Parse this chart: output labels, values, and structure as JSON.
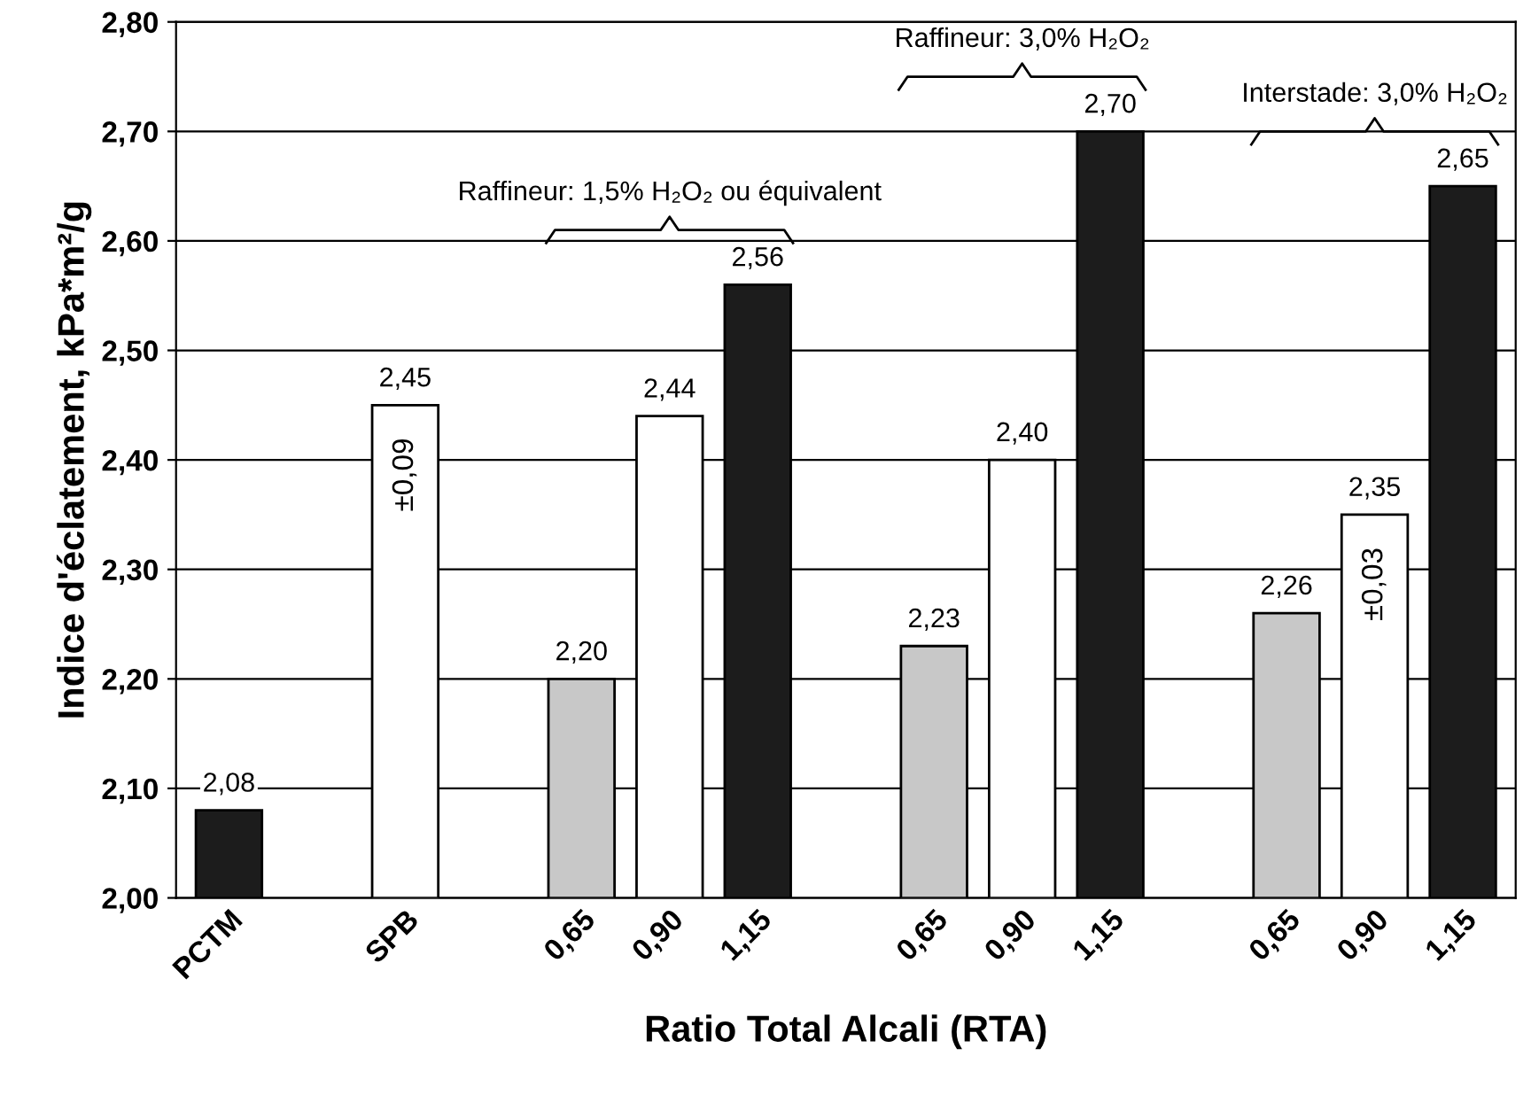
{
  "chart_data": {
    "type": "bar",
    "xlabel": "Ratio Total Alcali (RTA)",
    "ylabel": "Indice d'éclatement, kPa*m²/g",
    "categories": [
      "PCTM",
      null,
      "SPB",
      null,
      "0,65",
      "0,90",
      "1,15",
      null,
      "0,65",
      "0,90",
      "1,15",
      null,
      "0,65",
      "0,90",
      "1,15"
    ],
    "values": [
      2.08,
      null,
      2.45,
      null,
      2.2,
      2.44,
      2.56,
      null,
      2.23,
      2.4,
      2.7,
      null,
      2.26,
      2.35,
      2.65
    ],
    "value_labels": [
      "2,08",
      null,
      "2,45",
      null,
      "2,20",
      "2,44",
      "2,56",
      null,
      "2,23",
      "2,40",
      "2,70",
      null,
      "2,26",
      "2,35",
      "2,65"
    ],
    "colors": [
      "#1c1c1c",
      null,
      "#ffffff",
      null,
      "#c8c8c8",
      "#ffffff",
      "#1c1c1c",
      null,
      "#c8c8c8",
      "#ffffff",
      "#1c1c1c",
      null,
      "#c8c8c8",
      "#ffffff",
      "#1c1c1c"
    ],
    "ylim": [
      2.0,
      2.8
    ],
    "yticks": [
      {
        "value": 2.0,
        "label": "2,00"
      },
      {
        "value": 2.1,
        "label": "2,10"
      },
      {
        "value": 2.2,
        "label": "2,20"
      },
      {
        "value": 2.3,
        "label": "2,30"
      },
      {
        "value": 2.4,
        "label": "2,40"
      },
      {
        "value": 2.5,
        "label": "2,50"
      },
      {
        "value": 2.6,
        "label": "2,60"
      },
      {
        "value": 2.7,
        "label": "2,70"
      },
      {
        "value": 2.8,
        "label": "2,80"
      }
    ],
    "grid": "y",
    "annotations": [
      "±0,09",
      "±0,03",
      "Raffineur: 1,5% H₂O₂ ou équivalent",
      "Raffineur: 3,0% H₂O₂",
      "Interstade: 3,0% H₂O₂"
    ]
  }
}
